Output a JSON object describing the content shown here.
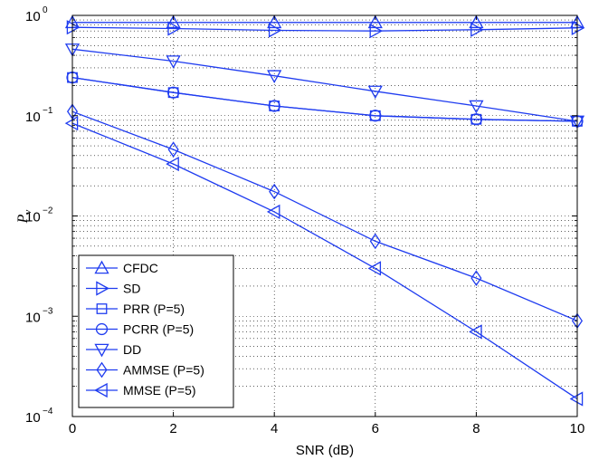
{
  "chart_data": {
    "type": "line",
    "xlabel": "SNR  (dB)",
    "ylabel": "P",
    "ylabel_subscript": "ν",
    "x": [
      0,
      2,
      4,
      6,
      8,
      10
    ],
    "x_ticks": [
      "0",
      "2",
      "4",
      "6",
      "8",
      "10"
    ],
    "xlim": [
      0,
      10
    ],
    "ylim": [
      0.0001,
      1
    ],
    "yscale": "log",
    "y_ticks": [
      {
        "base": "10",
        "exp": "0"
      },
      {
        "base": "10",
        "exp": "−1"
      },
      {
        "base": "10",
        "exp": "−2"
      },
      {
        "base": "10",
        "exp": "−3"
      },
      {
        "base": "10",
        "exp": "−4"
      }
    ],
    "grid": true,
    "legend_position": "bottom-left",
    "line_color": "#1f3cf0",
    "series": [
      {
        "name": "CFDC",
        "marker": "triangle-up",
        "values": [
          0.85,
          0.85,
          0.85,
          0.85,
          0.85,
          0.85
        ]
      },
      {
        "name": "SD",
        "marker": "triangle-right",
        "values": [
          0.76,
          0.74,
          0.71,
          0.7,
          0.72,
          0.75
        ]
      },
      {
        "name": "PRR (P=5)",
        "marker": "square",
        "values": [
          0.24,
          0.17,
          0.125,
          0.1,
          0.092,
          0.088
        ]
      },
      {
        "name": "PCRR (P=5)",
        "marker": "circle",
        "values": [
          0.24,
          0.17,
          0.125,
          0.1,
          0.092,
          0.088
        ]
      },
      {
        "name": "DD",
        "marker": "triangle-down",
        "values": [
          0.46,
          0.35,
          0.25,
          0.175,
          0.125,
          0.088
        ]
      },
      {
        "name": "AMMSE (P=5)",
        "marker": "diamond",
        "values": [
          0.11,
          0.046,
          0.0175,
          0.0056,
          0.0024,
          0.0009
        ]
      },
      {
        "name": "MMSE (P=5)",
        "marker": "triangle-left",
        "values": [
          0.084,
          0.033,
          0.011,
          0.003,
          0.0007,
          0.00015
        ]
      }
    ]
  }
}
